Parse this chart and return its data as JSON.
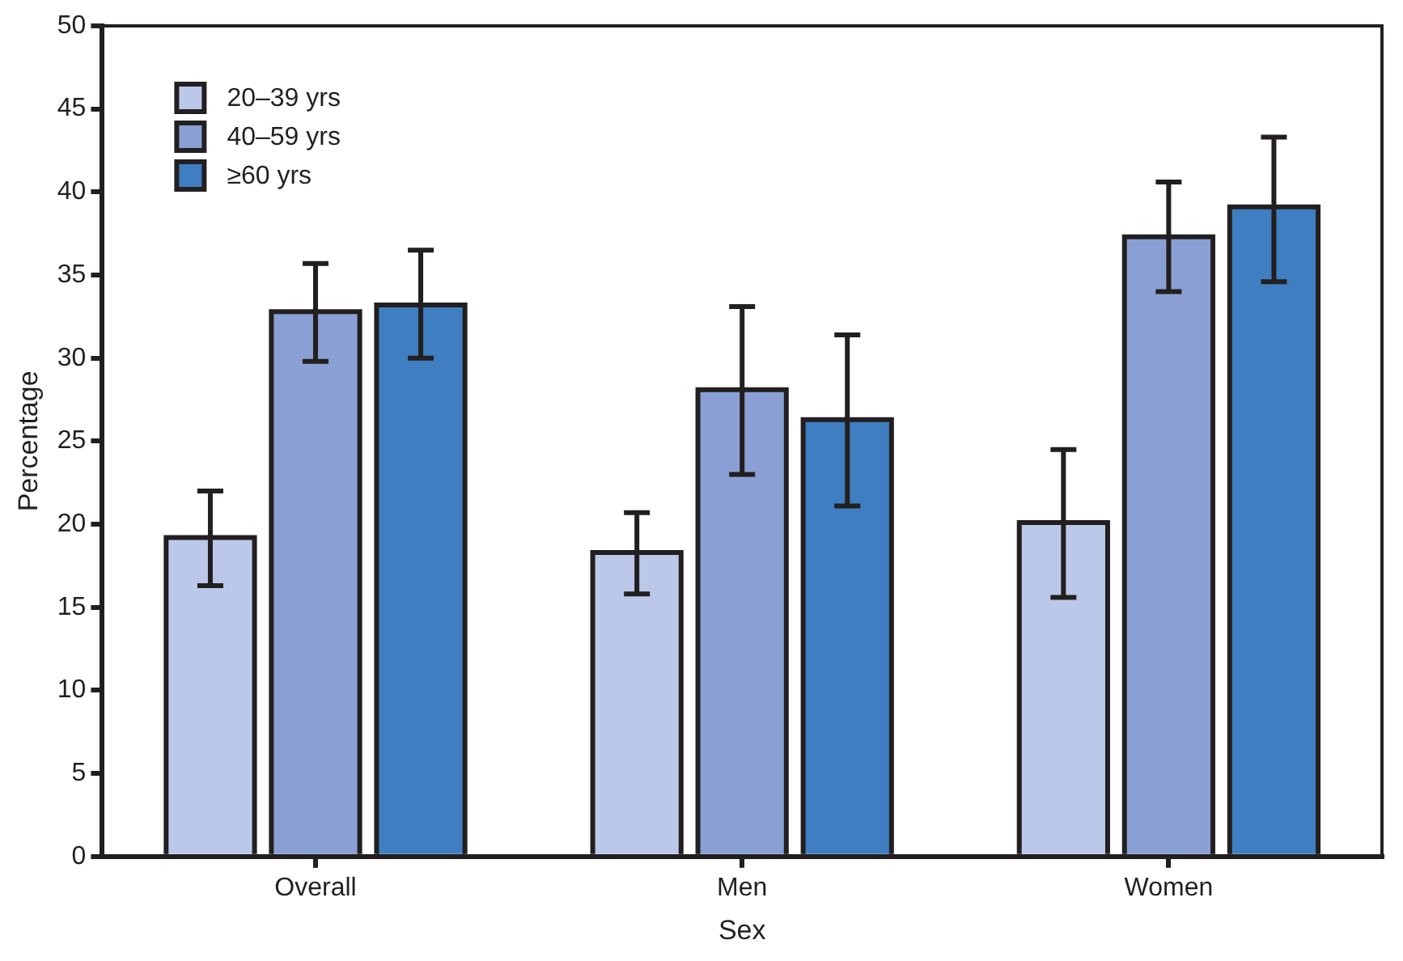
{
  "chart_data": {
    "type": "bar",
    "xlabel": "Sex",
    "ylabel": "Percentage",
    "categories": [
      "Overall",
      "Men",
      "Women"
    ],
    "series": [
      {
        "name": "20–39 yrs",
        "color": "#bcc8ea",
        "values": [
          19.2,
          18.3,
          20.1
        ],
        "errors": [
          [
            16.3,
            22.0
          ],
          [
            15.8,
            20.7
          ],
          [
            15.6,
            24.5
          ]
        ]
      },
      {
        "name": "40–59 yrs",
        "color": "#8aa0d4",
        "values": [
          32.8,
          28.1,
          37.3
        ],
        "errors": [
          [
            29.8,
            35.7
          ],
          [
            23.0,
            33.1
          ],
          [
            34.0,
            40.6
          ]
        ]
      },
      {
        "name": "≥60 yrs",
        "color": "#3f7fc1",
        "values": [
          33.2,
          26.3,
          39.1
        ],
        "errors": [
          [
            30.0,
            36.5
          ],
          [
            21.1,
            31.4
          ],
          [
            34.6,
            43.3
          ]
        ]
      }
    ],
    "ylim": [
      0,
      50
    ],
    "yticks": [
      0,
      5,
      10,
      15,
      20,
      25,
      30,
      35,
      40,
      45,
      50
    ],
    "grid": false,
    "legend": "top left"
  }
}
